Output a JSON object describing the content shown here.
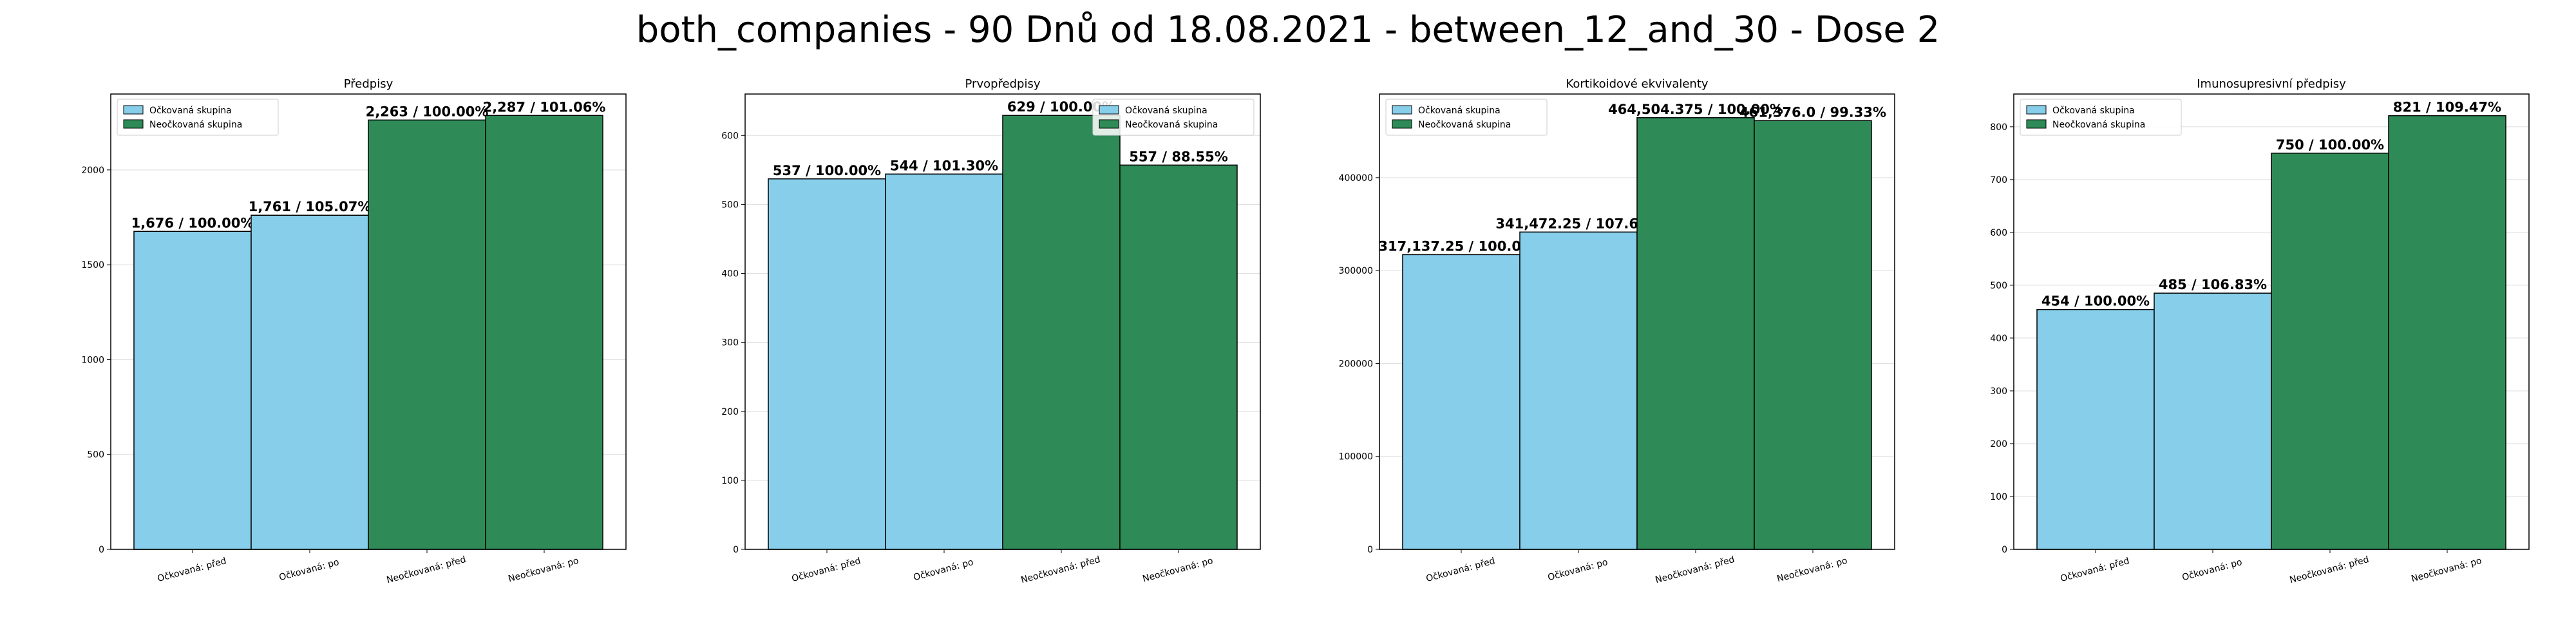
{
  "figure": {
    "title": "both_companies - 90 Dnů od 18.08.2021 - between_12_and_30 - Dose 2"
  },
  "colors": {
    "vaccinated": "#87ceeb",
    "unvaccinated": "#2e8b57",
    "bar_edge": "#000000",
    "grid": "#dddddd"
  },
  "chart_data": [
    {
      "type": "bar",
      "title": "Předpisy",
      "categories": [
        "Očkovaná: před",
        "Očkovaná: po",
        "Neočkovaná: před",
        "Neočkovaná: po"
      ],
      "values": [
        1676,
        1761,
        2263,
        2287
      ],
      "bar_groups": [
        "vaccinated",
        "vaccinated",
        "unvaccinated",
        "unvaccinated"
      ],
      "data_labels": [
        "1,676 / 100.00%",
        "1,761 / 105.07%",
        "2,263 / 100.00%",
        "2,287 / 101.06%"
      ],
      "yticks": [
        0,
        500,
        1000,
        1500,
        2000
      ],
      "ytick_labels": [
        "0",
        "500",
        "1000",
        "1500",
        "2000"
      ],
      "ylim": [
        0,
        2400
      ],
      "legend": [
        "Očkovaná skupina",
        "Neočkovaná skupina"
      ],
      "legend_position": "upper left",
      "grid": true
    },
    {
      "type": "bar",
      "title": "Prvopředpisy",
      "categories": [
        "Očkovaná: před",
        "Očkovaná: po",
        "Neočkovaná: před",
        "Neočkovaná: po"
      ],
      "values": [
        537,
        544,
        629,
        557
      ],
      "bar_groups": [
        "vaccinated",
        "vaccinated",
        "unvaccinated",
        "unvaccinated"
      ],
      "data_labels": [
        "537 / 100.00%",
        "544 / 101.30%",
        "629 / 100.00%",
        "557 / 88.55%"
      ],
      "yticks": [
        0,
        100,
        200,
        300,
        400,
        500,
        600
      ],
      "ytick_labels": [
        "0",
        "100",
        "200",
        "300",
        "400",
        "500",
        "600"
      ],
      "ylim": [
        0,
        660
      ],
      "legend": [
        "Očkovaná skupina",
        "Neočkovaná skupina"
      ],
      "legend_position": "upper right",
      "grid": true
    },
    {
      "type": "bar",
      "title": "Kortikoidové ekvivalenty",
      "categories": [
        "Očkovaná: před",
        "Očkovaná: po",
        "Neočkovaná: před",
        "Neočkovaná: po"
      ],
      "values": [
        317137.25,
        341472.25,
        464504.375,
        461376.0
      ],
      "bar_groups": [
        "vaccinated",
        "vaccinated",
        "unvaccinated",
        "unvaccinated"
      ],
      "data_labels": [
        "317,137.25 / 100.00%",
        "341,472.25 / 107.67%",
        "464,504.375 / 100.00%",
        "461,376.0 / 99.33%"
      ],
      "yticks": [
        0,
        100000,
        200000,
        300000,
        400000
      ],
      "ytick_labels": [
        "0",
        "100000",
        "200000",
        "300000",
        "400000"
      ],
      "ylim": [
        0,
        490000
      ],
      "legend": [
        "Očkovaná skupina",
        "Neočkovaná skupina"
      ],
      "legend_position": "upper left",
      "grid": true
    },
    {
      "type": "bar",
      "title": "Imunosupresivní předpisy",
      "categories": [
        "Očkovaná: před",
        "Očkovaná: po",
        "Neočkovaná: před",
        "Neočkovaná: po"
      ],
      "values": [
        454,
        485,
        750,
        821
      ],
      "bar_groups": [
        "vaccinated",
        "vaccinated",
        "unvaccinated",
        "unvaccinated"
      ],
      "data_labels": [
        "454 / 100.00%",
        "485 / 106.83%",
        "750 / 100.00%",
        "821 / 109.47%"
      ],
      "yticks": [
        0,
        100,
        200,
        300,
        400,
        500,
        600,
        700,
        800
      ],
      "ytick_labels": [
        "0",
        "100",
        "200",
        "300",
        "400",
        "500",
        "600",
        "700",
        "800"
      ],
      "ylim": [
        0,
        862
      ],
      "legend": [
        "Očkovaná skupina",
        "Neočkovaná skupina"
      ],
      "legend_position": "upper left",
      "grid": true
    }
  ]
}
